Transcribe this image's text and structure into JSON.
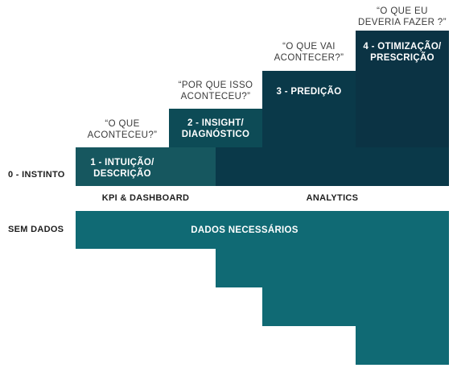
{
  "colors": {
    "step1": "#16575f",
    "step2": "#0d4b56",
    "step_dark": "#0a3949",
    "step4": "#0b3344",
    "data_teal": "#106a74",
    "text_dark": "#1e1e1e",
    "question_text": "#3a3a3a"
  },
  "side_labels": {
    "instinct": "0 - INSTINTO",
    "no_data": "SEM DADOS"
  },
  "steps": [
    {
      "line1": "1 - INTUIÇÃO/",
      "line2": "DESCRIÇÃO",
      "question1": "“O QUE",
      "question2": "ACONTECEU?”"
    },
    {
      "line1": "2 - INSIGHT/",
      "line2": "DIAGNÓSTICO",
      "question1": "“POR QUE ISSO",
      "question2": "ACONTECEU?”"
    },
    {
      "line1": "3 - PREDIÇÃO",
      "line2": "",
      "question1": "“O QUE VAI",
      "question2": "ACONTECER?”"
    },
    {
      "line1": "4 - OTIMIZAÇÃO/",
      "line2": "PRESCRIÇÃO",
      "question1": "“O QUE EU",
      "question2": "DEVERIA FAZER ?”"
    }
  ],
  "categories": {
    "kpi": "KPI & DASHBOARD",
    "analytics": "ANALYTICS"
  },
  "data_needed": "DADOS NECESSÁRIOS"
}
